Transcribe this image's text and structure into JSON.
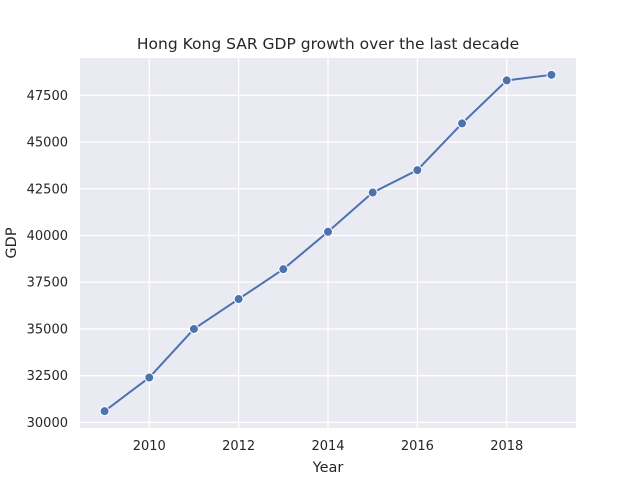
{
  "chart_data": {
    "type": "line",
    "title": "Hong Kong SAR GDP growth over the last decade",
    "xlabel": "Year",
    "ylabel": "GDP",
    "x": [
      2009,
      2010,
      2011,
      2012,
      2013,
      2014,
      2015,
      2016,
      2017,
      2018,
      2019
    ],
    "series": [
      {
        "values": [
          30600,
          32400,
          35000,
          36600,
          38200,
          40200,
          42300,
          43500,
          46000,
          48300,
          48600
        ]
      }
    ],
    "xlim": [
      2008.45,
      2019.55
    ],
    "ylim": [
      29700,
      49500
    ],
    "xticks": [
      2010,
      2012,
      2014,
      2016,
      2018
    ],
    "yticks": [
      30000,
      32500,
      35000,
      37500,
      40000,
      42500,
      45000,
      47500
    ],
    "grid": true,
    "legend": "none",
    "colors": {
      "plot_background": "#eaeaf2",
      "grid": "#ffffff",
      "line": "#4c72b0",
      "marker_edge": "#ffffff",
      "text": "#262626"
    }
  }
}
